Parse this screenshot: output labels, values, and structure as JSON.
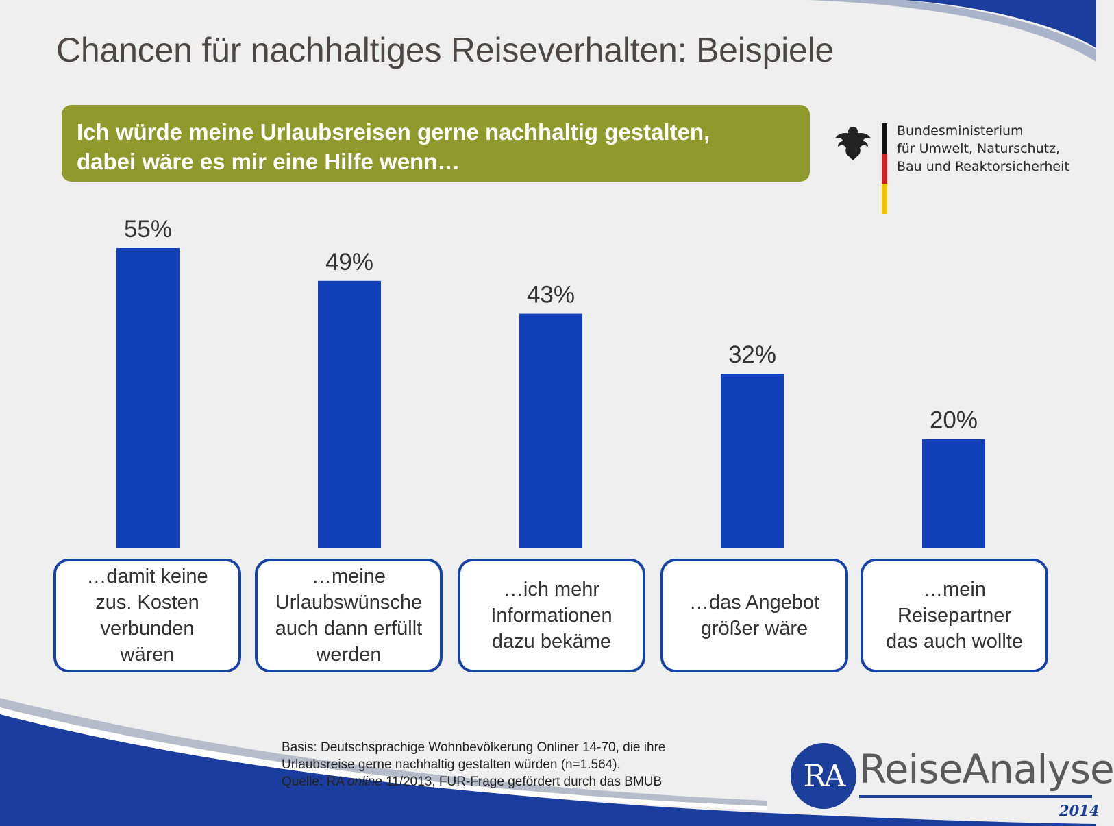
{
  "title": "Chancen für nachhaltiges Reiseverhalten: Beispiele",
  "question": {
    "line1": "Ich würde meine Urlaubsreisen gerne nachhaltig gestalten,",
    "line2": "dabei wäre es mir eine Hilfe wenn…"
  },
  "ministry": {
    "line1": "Bundesministerium",
    "line2": "für Umwelt, Naturschutz,",
    "line3": "Bau und Reaktorsicherheit"
  },
  "chart_data": {
    "type": "bar",
    "title": "Chancen für nachhaltiges Reiseverhalten: Beispiele",
    "xlabel": "",
    "ylabel": "",
    "ylim": [
      0,
      60
    ],
    "categories": [
      [
        "…damit keine",
        "zus. Kosten",
        "verbunden",
        "wären"
      ],
      [
        "…meine",
        "Urlaubswünsche",
        "auch dann erfüllt",
        "werden"
      ],
      [
        "…ich mehr",
        "Informationen",
        "dazu bekäme"
      ],
      [
        "…das Angebot",
        "größer wäre"
      ],
      [
        "…mein",
        "Reisepartner",
        "das auch wollte"
      ]
    ],
    "values": [
      55,
      49,
      43,
      32,
      20
    ],
    "value_labels": [
      "55%",
      "49%",
      "43%",
      "32%",
      "20%"
    ],
    "bar_color": "#1240b8",
    "grid": false,
    "legend": "none"
  },
  "footer": {
    "line1": "Basis: Deutschsprachige Wohnbevölkerung Onliner 14-70, die ihre",
    "line2": "Urlaubsreise gerne nachhaltig gestalten würden (n=1.564).",
    "line3_prefix": "Quelle: RA ",
    "line3_italic": "online",
    "line3_suffix": " 11/2013, FUR-Frage gefördert durch das BMUB"
  },
  "brand": {
    "initials": "RA",
    "name": "ReiseAnalyse",
    "year": "2014"
  },
  "colors": {
    "accent_blue": "#1b3f9a",
    "question_green": "#8f9a2d",
    "bar_blue": "#1240b8"
  }
}
